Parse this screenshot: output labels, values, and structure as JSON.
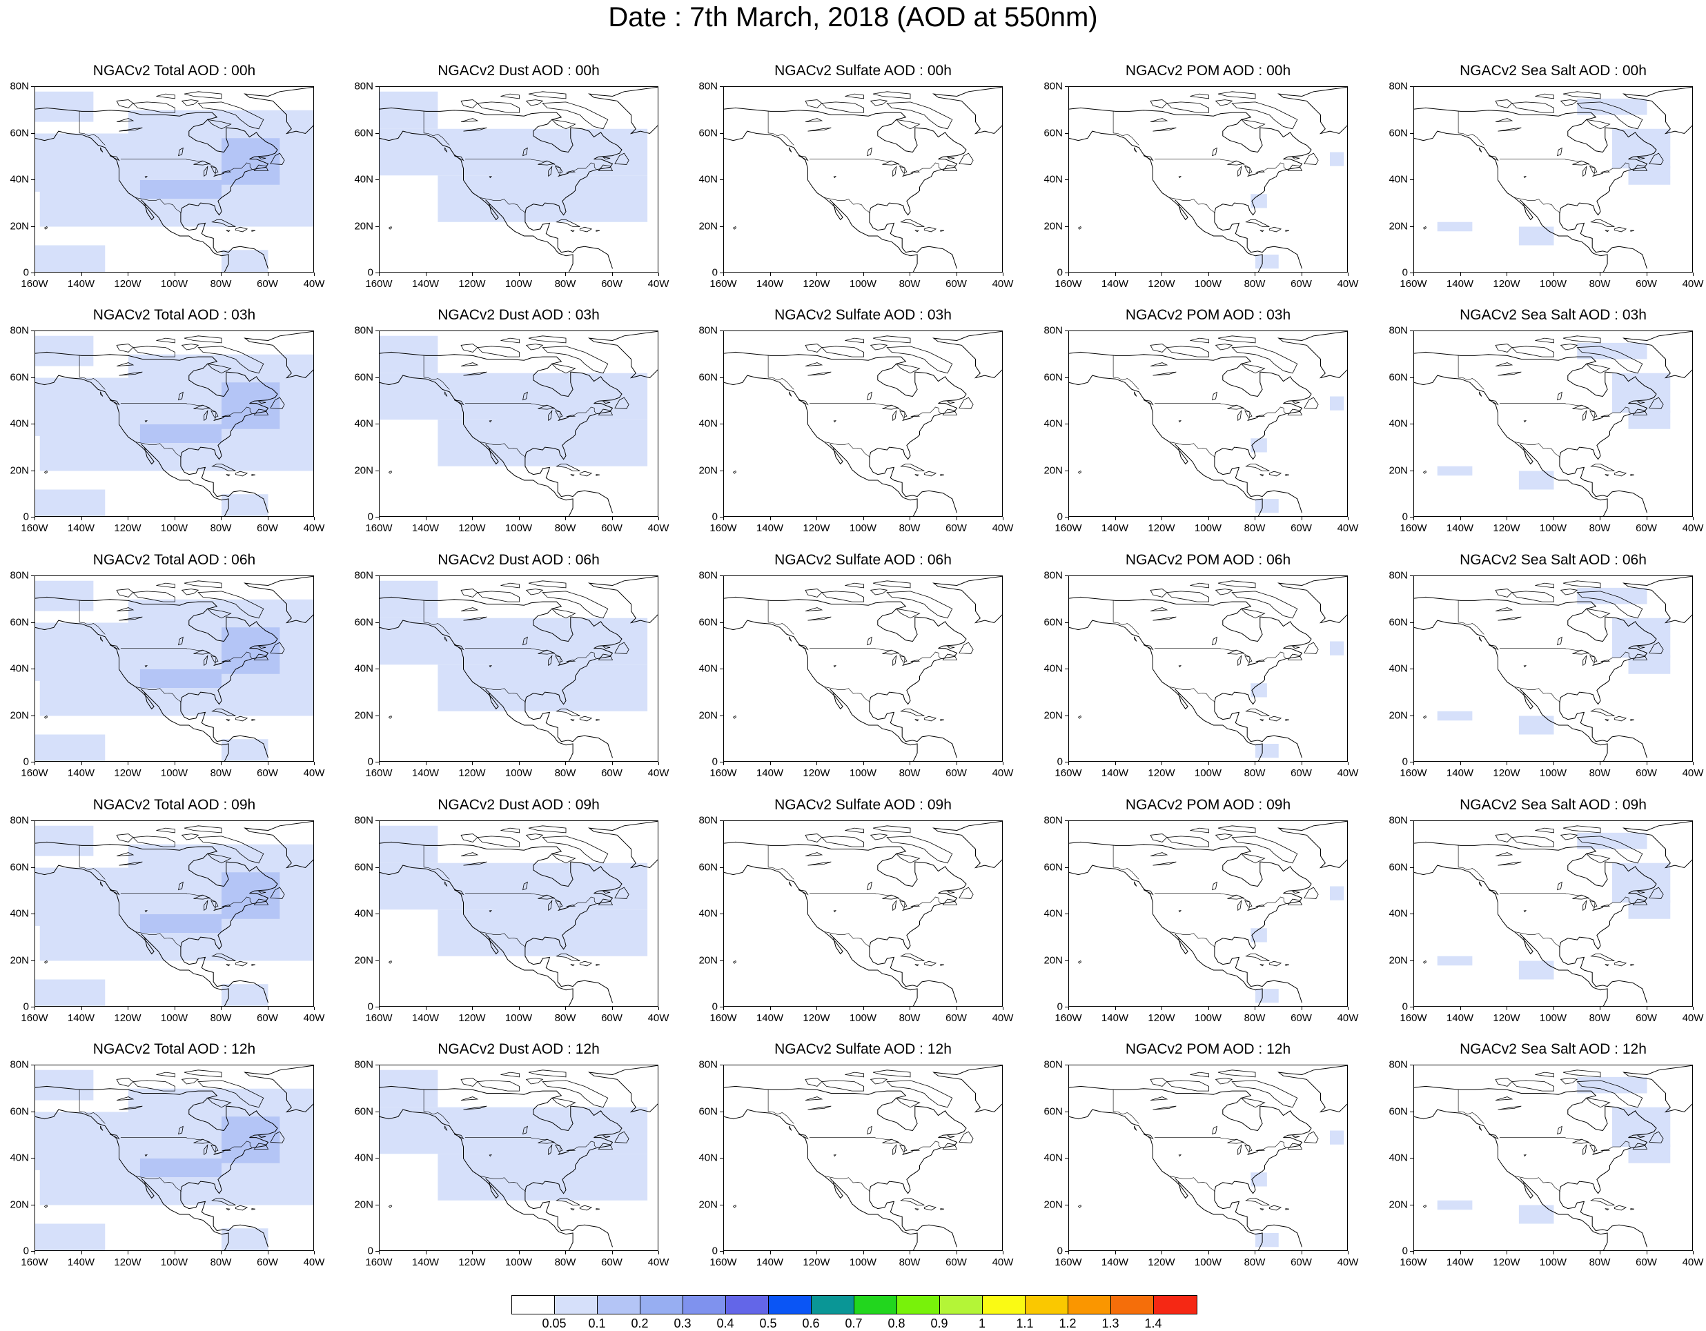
{
  "title": "Date : 7th March, 2018 (AOD at 550nm)",
  "axes": {
    "y_ticks": [
      "80N",
      "60N",
      "40N",
      "20N",
      "0"
    ],
    "x_ticks": [
      "160W",
      "140W",
      "120W",
      "100W",
      "80W",
      "60W",
      "40W"
    ],
    "lat_range": [
      0,
      80
    ],
    "lon_range": [
      -160,
      -40
    ]
  },
  "panel_titles": [
    [
      "NGACv2 Total AOD : 00h",
      "NGACv2 Dust AOD : 00h",
      "NGACv2 Sulfate AOD : 00h",
      "NGACv2 POM AOD : 00h",
      "NGACv2 Sea Salt AOD : 00h"
    ],
    [
      "NGACv2 Total AOD : 03h",
      "NGACv2 Dust AOD : 03h",
      "NGACv2 Sulfate AOD : 03h",
      "NGACv2 POM AOD : 03h",
      "NGACv2 Sea Salt AOD : 03h"
    ],
    [
      "NGACv2 Total AOD : 06h",
      "NGACv2 Dust AOD : 06h",
      "NGACv2 Sulfate AOD : 06h",
      "NGACv2 POM AOD : 06h",
      "NGACv2 Sea Salt AOD : 06h"
    ],
    [
      "NGACv2 Total AOD : 09h",
      "NGACv2 Dust AOD : 09h",
      "NGACv2 Sulfate AOD : 09h",
      "NGACv2 POM AOD : 09h",
      "NGACv2 Sea Salt  AOD : 09h"
    ],
    [
      "NGACv2 Total AOD  : 12h",
      "NGACv2 Dust AOD : 12h",
      "NGACv2 Sulfate AOD : 12h",
      "NGACv2 POM  AOD : 12h",
      "NGACv2 Sea Salt  AOD : 12h"
    ]
  ],
  "colorbar": {
    "colors": [
      "#ffffff",
      "#d6e0fa",
      "#b4c5f6",
      "#97aef2",
      "#7f92ee",
      "#6366e8",
      "#0a55f5",
      "#0a9696",
      "#22d61e",
      "#78f20a",
      "#b4f537",
      "#fafa14",
      "#fac800",
      "#fa9600",
      "#f56e0a",
      "#f52814"
    ],
    "labels": [
      "0.05",
      "0.1",
      "0.2",
      "0.3",
      "0.4",
      "0.5",
      "0.6",
      "0.7",
      "0.8",
      "0.9",
      "1",
      "1.1",
      "1.2",
      "1.3",
      "1.4"
    ]
  }
}
